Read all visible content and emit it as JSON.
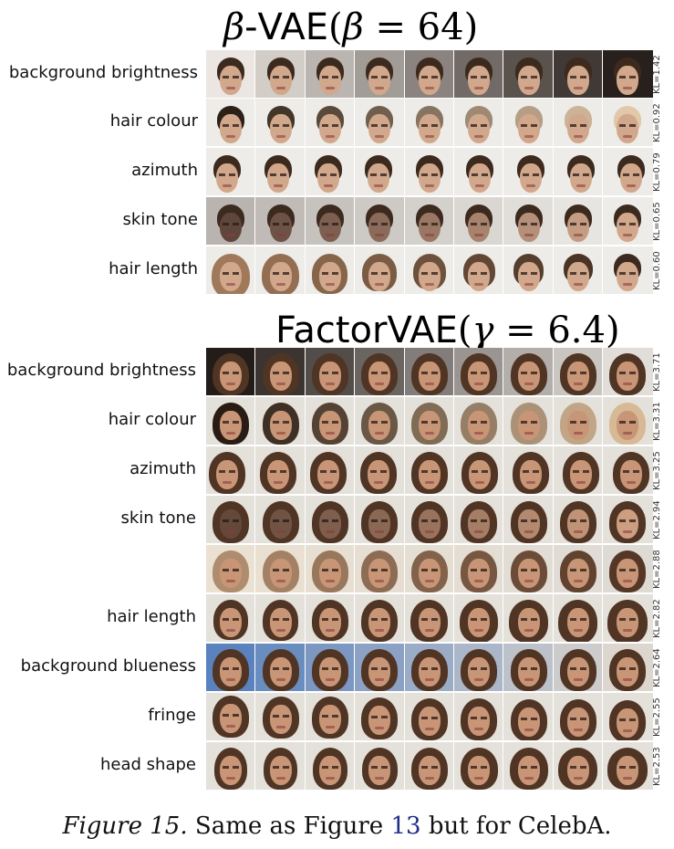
{
  "panels": [
    {
      "title_word": "β-VAE",
      "title_math": "(β = 64)",
      "rows": [
        {
          "label": "background brightness",
          "kl": "KL=1.42"
        },
        {
          "label": "hair colour",
          "kl": "KL=0.92"
        },
        {
          "label": "azimuth",
          "kl": "KL=0.79"
        },
        {
          "label": "skin tone",
          "kl": "KL=0.65"
        },
        {
          "label": "hair length",
          "kl": "KL=0.60"
        }
      ]
    },
    {
      "title_word": "FactorVAE",
      "title_math": "(γ = 6.4)",
      "rows": [
        {
          "label": "background brightness",
          "kl": "KL=3.71"
        },
        {
          "label": "hair colour",
          "kl": "KL=3.31"
        },
        {
          "label": "azimuth",
          "kl": "KL=3.25"
        },
        {
          "label": "skin tone",
          "kl": "KL=2.94"
        },
        {
          "label": "",
          "kl": "KL=2.88"
        },
        {
          "label": "hair length",
          "kl": "KL=2.82"
        },
        {
          "label": "background blueness",
          "kl": "KL=2.64"
        },
        {
          "label": "fringe",
          "kl": "KL=2.55"
        },
        {
          "label": "head shape",
          "kl": "KL=2.53"
        }
      ]
    }
  ],
  "caption": {
    "figure_label": "Figure 15.",
    "text_before": "Same as Figure",
    "ref": "13",
    "text_after": "but for CelebA."
  }
}
